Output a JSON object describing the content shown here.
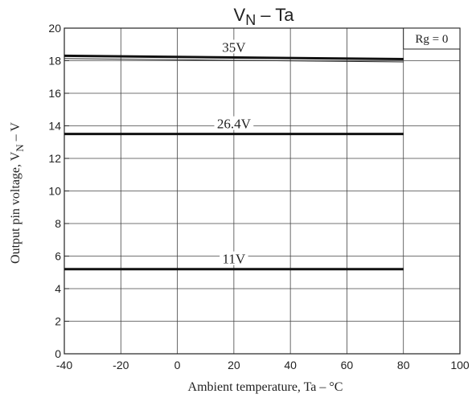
{
  "chart_data": {
    "type": "line",
    "title_main": "V",
    "title_sub": "N",
    "title_rest": " – Ta",
    "xlabel": "Ambient temperature, Ta – °C",
    "ylabel_main": "Output pin voltage, V",
    "ylabel_sub": "N",
    "ylabel_rest": " – V",
    "xlim": [
      -40,
      100
    ],
    "ylim": [
      0,
      20
    ],
    "x_ticks": [
      -40,
      -20,
      0,
      20,
      40,
      60,
      80,
      100
    ],
    "y_ticks": [
      0,
      2,
      4,
      6,
      8,
      10,
      12,
      14,
      16,
      18,
      20
    ],
    "grid": true,
    "annotation": "Rg = 0",
    "series": [
      {
        "name": "35V",
        "x": [
          -40,
          80
        ],
        "y": [
          18.3,
          18.1
        ]
      },
      {
        "name": "26.4V",
        "x": [
          -40,
          80
        ],
        "y": [
          13.5,
          13.5
        ]
      },
      {
        "name": "11V",
        "x": [
          -40,
          80
        ],
        "y": [
          5.2,
          5.2
        ]
      }
    ]
  }
}
